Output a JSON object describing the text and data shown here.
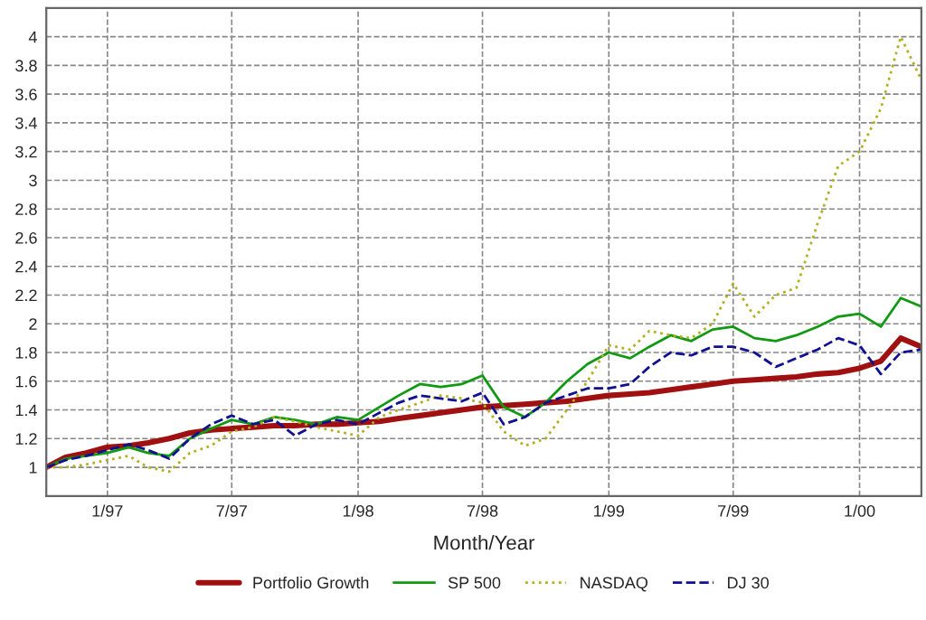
{
  "chart_data": {
    "type": "line",
    "xlabel": "Month/Year",
    "x": [
      "1996-10-04",
      "1996-11-01",
      "1996-12-01",
      "1997-01-01",
      "1997-02-01",
      "1997-03-01",
      "1997-04-01",
      "1997-05-01",
      "1997-06-01",
      "1997-07-01",
      "1997-08-01",
      "1997-09-01",
      "1997-10-01",
      "1997-11-01",
      "1997-12-01",
      "1998-01-01",
      "1998-02-01",
      "1998-03-01",
      "1998-04-01",
      "1998-05-01",
      "1998-06-01",
      "1998-07-01",
      "1998-08-01",
      "1998-09-01",
      "1998-10-01",
      "1998-11-01",
      "1998-12-01",
      "1999-01-01",
      "1999-02-01",
      "1999-03-01",
      "1999-04-01",
      "1999-05-01",
      "1999-06-01",
      "1999-07-01",
      "1999-08-01",
      "1999-09-01",
      "1999-10-01",
      "1999-11-01",
      "1999-12-01",
      "2000-01-01",
      "2000-02-01",
      "2000-03-01",
      "2000-03-31"
    ],
    "series": [
      {
        "name": "Portfolio Growth",
        "color": "#a01010",
        "line_style": "solid",
        "values": [
          1.0,
          1.07,
          1.1,
          1.14,
          1.15,
          1.17,
          1.2,
          1.24,
          1.26,
          1.27,
          1.28,
          1.29,
          1.29,
          1.3,
          1.3,
          1.31,
          1.32,
          1.34,
          1.36,
          1.38,
          1.4,
          1.42,
          1.43,
          1.44,
          1.45,
          1.46,
          1.48,
          1.5,
          1.51,
          1.52,
          1.54,
          1.56,
          1.58,
          1.6,
          1.61,
          1.62,
          1.63,
          1.65,
          1.66,
          1.69,
          1.74,
          1.9,
          1.84
        ]
      },
      {
        "name": "SP 500",
        "color": "#119911",
        "line_style": "solid",
        "values": [
          1.0,
          1.06,
          1.08,
          1.1,
          1.14,
          1.1,
          1.08,
          1.2,
          1.27,
          1.33,
          1.3,
          1.35,
          1.33,
          1.3,
          1.35,
          1.33,
          1.42,
          1.5,
          1.58,
          1.56,
          1.58,
          1.64,
          1.42,
          1.35,
          1.45,
          1.6,
          1.72,
          1.8,
          1.76,
          1.84,
          1.92,
          1.88,
          1.96,
          1.98,
          1.9,
          1.88,
          1.92,
          1.98,
          2.05,
          2.07,
          1.98,
          2.18,
          2.12
        ]
      },
      {
        "name": "NASDAQ",
        "color": "#b0b020",
        "line_style": "dotted",
        "values": [
          1.0,
          1.0,
          1.02,
          1.05,
          1.08,
          1.0,
          0.97,
          1.1,
          1.15,
          1.25,
          1.28,
          1.35,
          1.32,
          1.28,
          1.25,
          1.22,
          1.35,
          1.4,
          1.45,
          1.5,
          1.48,
          1.45,
          1.25,
          1.15,
          1.2,
          1.4,
          1.6,
          1.85,
          1.82,
          1.95,
          1.92,
          1.9,
          2.0,
          2.28,
          2.05,
          2.2,
          2.25,
          2.7,
          3.1,
          3.2,
          3.5,
          4.0,
          3.7
        ]
      },
      {
        "name": "DJ 30",
        "color": "#101090",
        "line_style": "dashed",
        "values": [
          1.0,
          1.05,
          1.08,
          1.12,
          1.16,
          1.12,
          1.06,
          1.2,
          1.3,
          1.36,
          1.3,
          1.33,
          1.22,
          1.3,
          1.33,
          1.3,
          1.38,
          1.45,
          1.5,
          1.48,
          1.46,
          1.52,
          1.3,
          1.35,
          1.45,
          1.5,
          1.55,
          1.55,
          1.58,
          1.7,
          1.8,
          1.78,
          1.84,
          1.84,
          1.8,
          1.7,
          1.76,
          1.82,
          1.9,
          1.85,
          1.65,
          1.8,
          1.82
        ]
      }
    ],
    "xlim": [
      "1996-10-04",
      "2000-03-31"
    ],
    "xticks": [
      {
        "value": "1997-01-01",
        "label": "1/97"
      },
      {
        "value": "1997-07-01",
        "label": "7/97"
      },
      {
        "value": "1998-01-01",
        "label": "1/98"
      },
      {
        "value": "1998-07-01",
        "label": "7/98"
      },
      {
        "value": "1999-01-01",
        "label": "1/99"
      },
      {
        "value": "1999-07-01",
        "label": "7/99"
      },
      {
        "value": "2000-01-01",
        "label": "1/00"
      }
    ],
    "ylim": [
      0.8,
      4.2
    ],
    "yticks": [
      1,
      1.2,
      1.4,
      1.6,
      1.8,
      2,
      2.2,
      2.4,
      2.6,
      2.8,
      3,
      3.2,
      3.4,
      3.6,
      3.8,
      4
    ],
    "grid": true,
    "legend": "bottom",
    "marker": "none"
  }
}
